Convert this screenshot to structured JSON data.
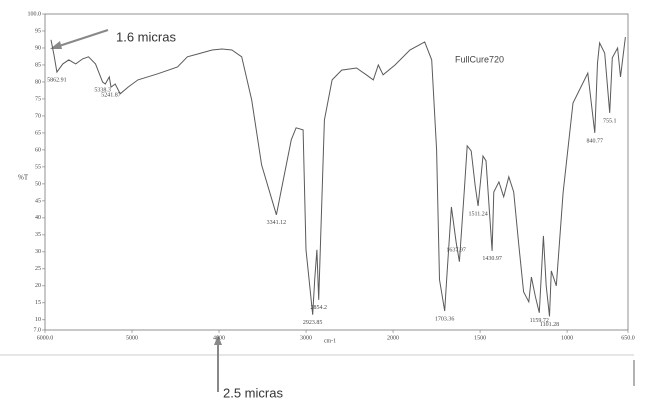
{
  "chart_data": {
    "type": "line",
    "annotations": {
      "legend_text": "FullCure720",
      "note_top": "1.6 micras",
      "note_bottom": "2.5 micras"
    },
    "ylabel": "%T",
    "xlabel": "cm-1",
    "color": "#5a5a5a",
    "xlim": [
      6000,
      650
    ],
    "ylim": [
      7,
      100
    ],
    "xticks": [
      {
        "value": 6000,
        "label": "6000.0"
      },
      5000,
      4000,
      3000,
      2000,
      1500,
      1000,
      {
        "value": 650,
        "label": "650.0"
      }
    ],
    "yticks": [
      {
        "value": 7,
        "label": "7.0"
      },
      10,
      15,
      20,
      25,
      30,
      35,
      40,
      45,
      50,
      55,
      60,
      65,
      70,
      75,
      80,
      85,
      90,
      95,
      {
        "value": 100,
        "label": "100.0"
      }
    ],
    "x": [
      5931,
      5896,
      5862.91,
      5795,
      5727,
      5647,
      5568,
      5500,
      5420,
      5338.3,
      5307,
      5261,
      5241.87,
      5193,
      5136,
      5045,
      4932,
      4705,
      4477,
      4364,
      4250,
      4080,
      3966,
      3852,
      3739,
      3625,
      3511,
      3341.12,
      3284,
      3170,
      3114,
      3034,
      3000,
      2923.85,
      2900,
      2875,
      2854.2,
      2789,
      2700,
      2590,
      2420,
      2307,
      2227,
      2170,
      2114,
      1989,
      1903,
      1818,
      1778,
      1750,
      1733,
      1703.36,
      1693,
      1665,
      1637.97,
      1619,
      1591,
      1574,
      1551,
      1528,
      1511.24,
      1483,
      1466,
      1430.97,
      1421,
      1392,
      1364,
      1335,
      1307,
      1279,
      1250,
      1220,
      1205,
      1182,
      1159.72,
      1136,
      1120,
      1101.28,
      1091,
      1062,
      1023,
      966,
      909,
      881,
      840.77,
      825,
      813,
      784,
      755.1,
      740,
      710,
      693,
      665
    ],
    "values": [
      92.4,
      87.9,
      82.9,
      85.3,
      86.5,
      85.3,
      86.8,
      87.4,
      85.3,
      80.0,
      79.4,
      81.5,
      78.5,
      79.4,
      76.5,
      78.5,
      80.6,
      82.4,
      84.4,
      87.4,
      88.2,
      89.4,
      89.7,
      89.4,
      87.4,
      74.7,
      55.6,
      40.9,
      48.2,
      63.0,
      66.5,
      65.9,
      30.6,
      11.5,
      21.8,
      30.6,
      15.9,
      68.8,
      80.6,
      83.5,
      84.1,
      82.1,
      80.6,
      85.0,
      82.1,
      85.0,
      89.4,
      91.8,
      86.5,
      60.0,
      21.8,
      12.6,
      21.2,
      43.2,
      32.9,
      27.1,
      47.6,
      61.2,
      59.7,
      49.4,
      43.5,
      58.2,
      56.8,
      30.3,
      47.6,
      50.6,
      46.2,
      52.1,
      47.6,
      32.9,
      18.2,
      15.3,
      22.6,
      16.8,
      12.1,
      34.7,
      20.0,
      11.0,
      24.4,
      20.0,
      47.4,
      73.8,
      79.7,
      82.6,
      65.0,
      85.6,
      91.5,
      88.5,
      70.9,
      87.1,
      90.0,
      81.5,
      93.2
    ],
    "peak_labels": [
      5862.91,
      5338.3,
      5241.87,
      3341.12,
      2923.85,
      2854.2,
      1703.36,
      1637.97,
      1511.24,
      1430.97,
      1159.72,
      1101.28,
      840.77,
      755.1
    ]
  }
}
